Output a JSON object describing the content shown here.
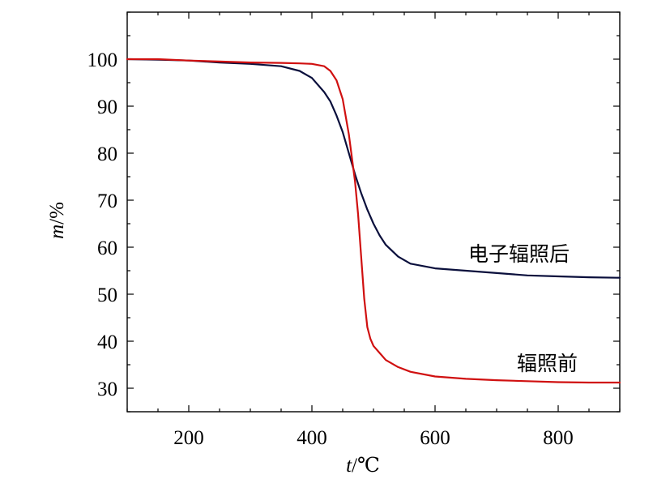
{
  "chart_data": {
    "type": "line",
    "xlabel_var": "t",
    "xlabel_unit": "/℃",
    "ylabel_var": "m",
    "ylabel_unit": "/%",
    "xlim": [
      100,
      900
    ],
    "ylim": [
      25,
      110
    ],
    "xticks": [
      200,
      400,
      600,
      800
    ],
    "yticks": [
      30,
      40,
      50,
      60,
      70,
      80,
      90,
      100
    ],
    "grid": false,
    "series": [
      {
        "name": "电子辐照后",
        "color": "#0a0f3c",
        "x": [
          100,
          150,
          200,
          250,
          300,
          350,
          380,
          400,
          420,
          430,
          440,
          450,
          460,
          470,
          480,
          490,
          500,
          510,
          520,
          540,
          560,
          580,
          600,
          650,
          700,
          750,
          800,
          850,
          900
        ],
        "y": [
          100.0,
          99.9,
          99.7,
          99.3,
          99.0,
          98.5,
          97.5,
          96.0,
          93.0,
          91.0,
          88.0,
          84.5,
          80.0,
          75.5,
          71.5,
          68.0,
          65.0,
          62.5,
          60.5,
          58.0,
          56.5,
          56.0,
          55.5,
          55.0,
          54.5,
          54.0,
          53.8,
          53.6,
          53.5
        ]
      },
      {
        "name": "辐照前",
        "color": "#d01010",
        "x": [
          100,
          150,
          200,
          250,
          300,
          350,
          380,
          400,
          420,
          430,
          440,
          450,
          460,
          465,
          470,
          475,
          480,
          485,
          490,
          495,
          500,
          510,
          520,
          540,
          560,
          600,
          650,
          700,
          750,
          800,
          850,
          900
        ],
        "y": [
          100.0,
          100.0,
          99.7,
          99.5,
          99.3,
          99.2,
          99.1,
          99.0,
          98.5,
          97.5,
          95.5,
          91.5,
          84.0,
          79.0,
          74.0,
          67.0,
          58.0,
          49.0,
          43.0,
          40.5,
          39.0,
          37.5,
          36.0,
          34.5,
          33.5,
          32.5,
          32.0,
          31.7,
          31.5,
          31.3,
          31.2,
          31.2
        ]
      }
    ]
  }
}
